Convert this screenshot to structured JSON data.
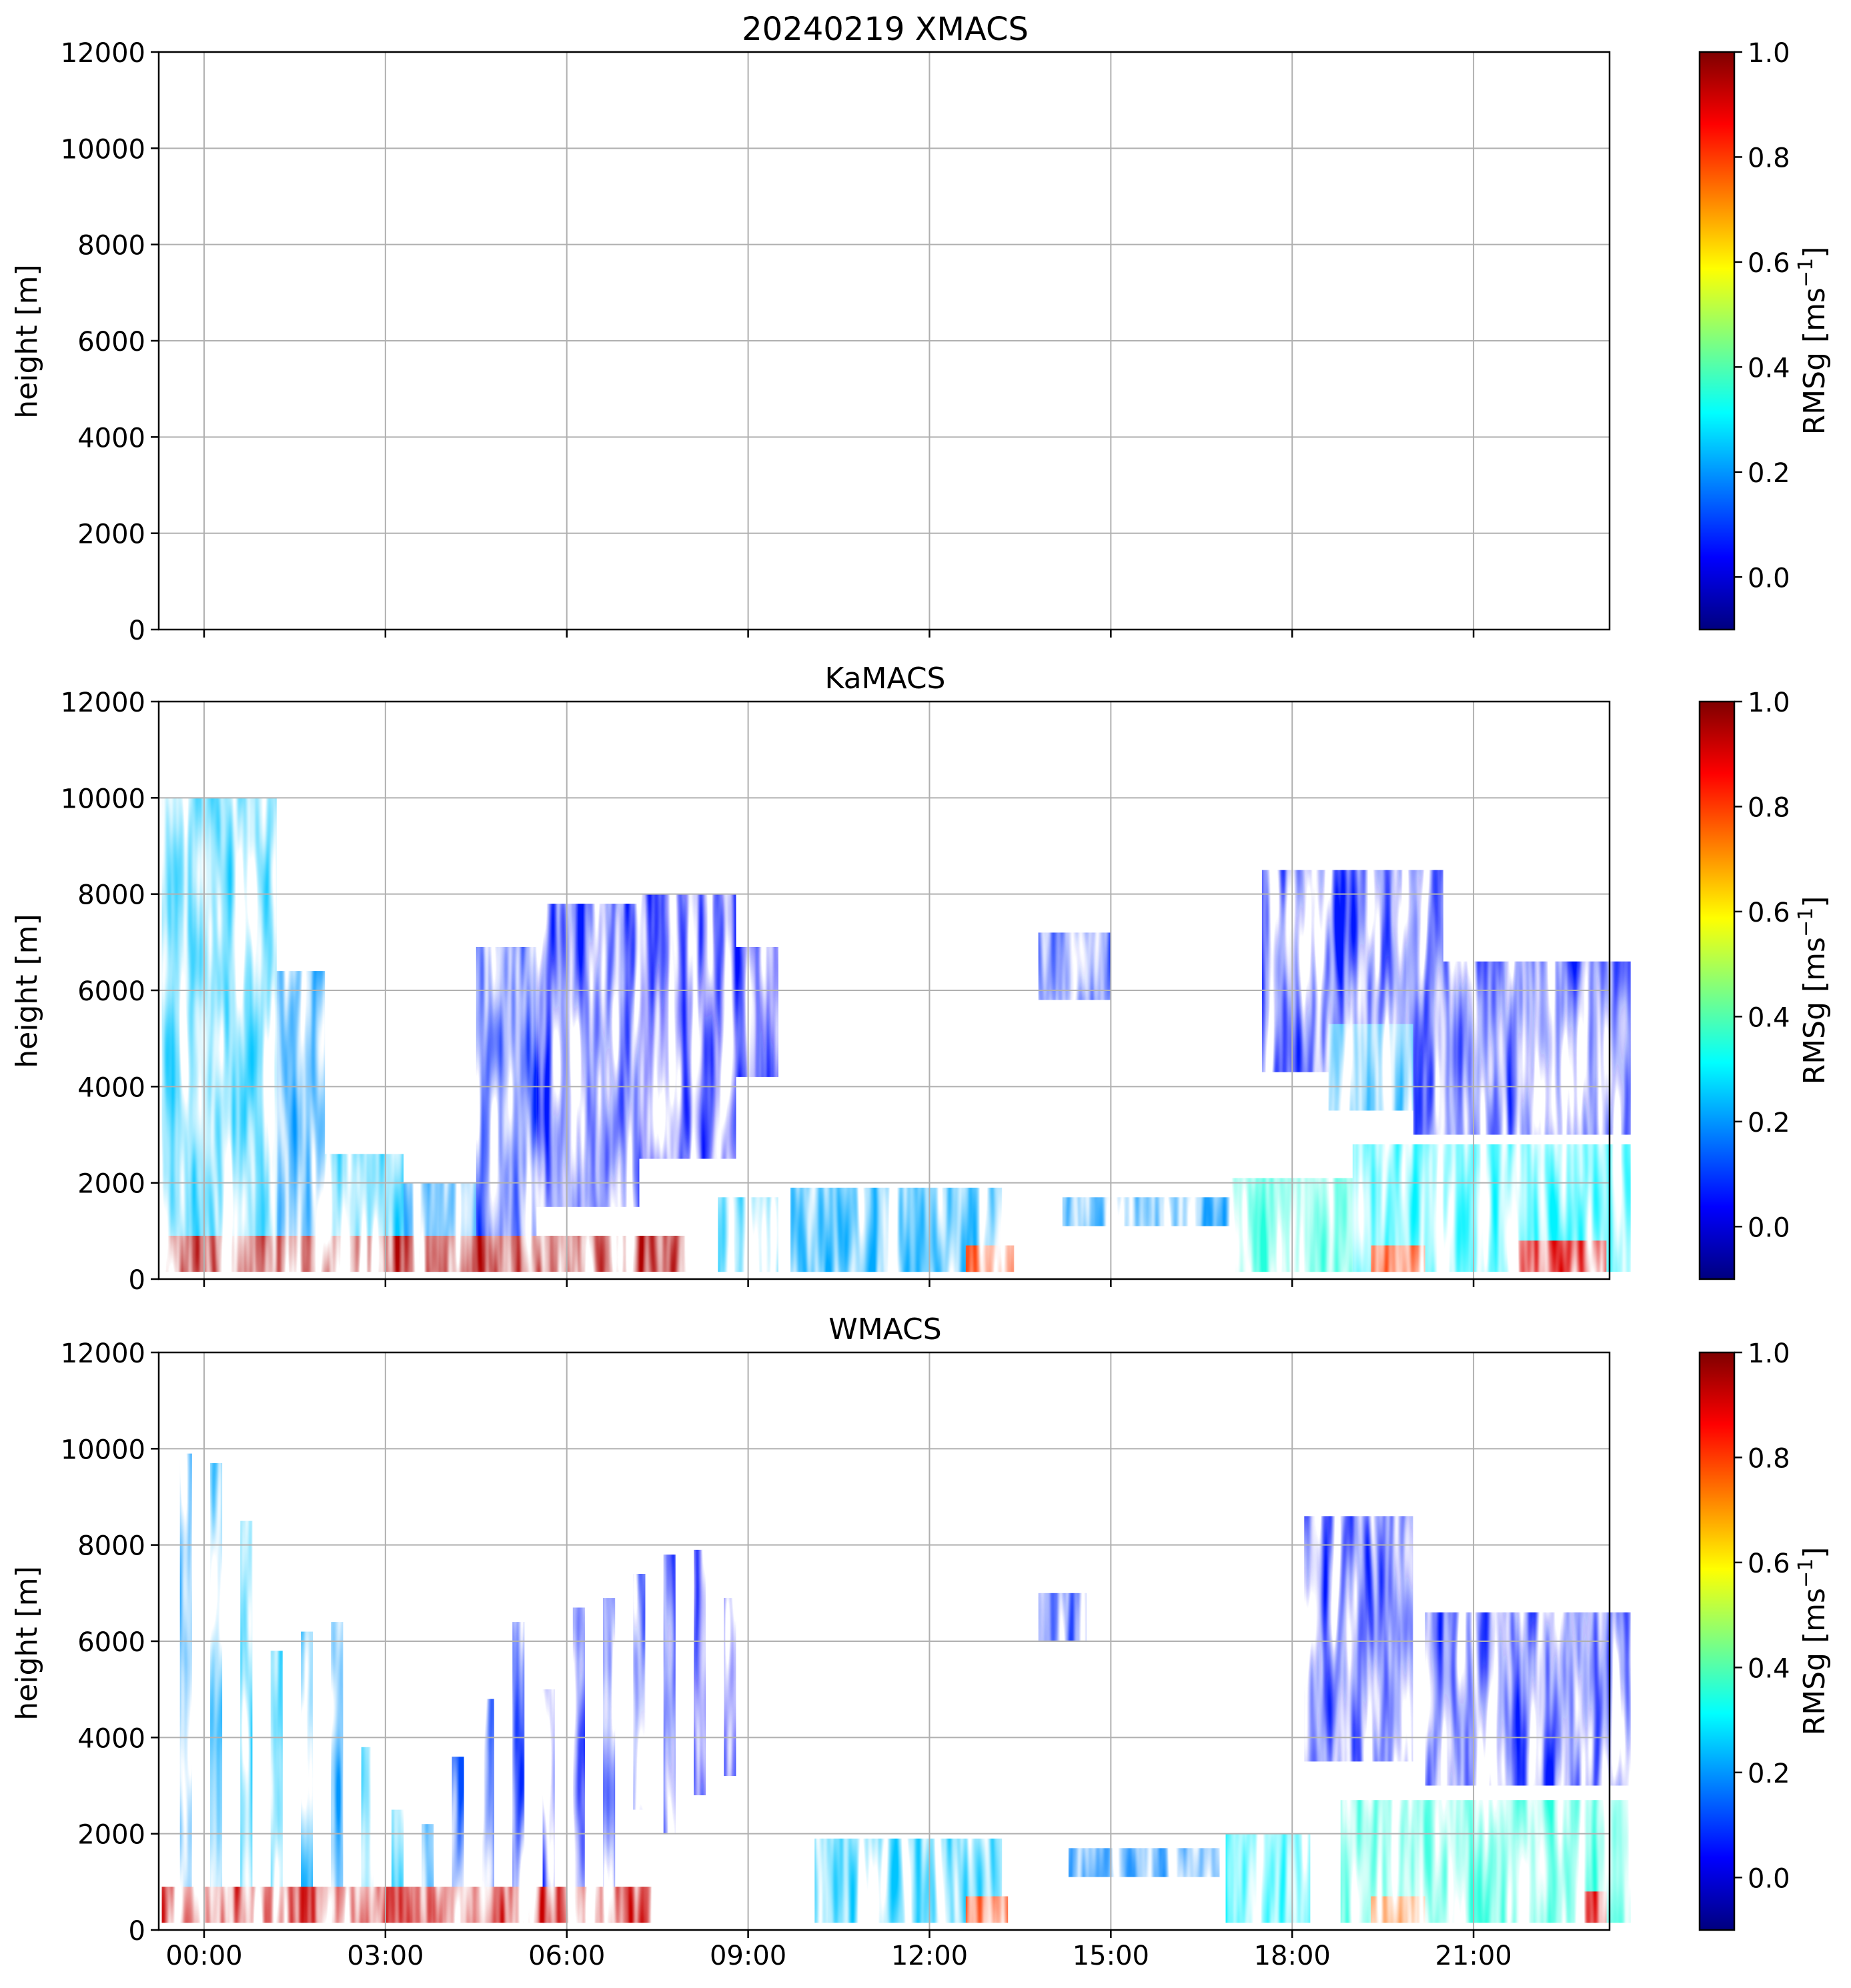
{
  "colorbar": {
    "label": "RMSg [ms",
    "label_sup": "−1",
    "label_end": "]",
    "vmin": -0.1,
    "vmax": 1.0,
    "ticks": [
      "0.0",
      "0.2",
      "0.4",
      "0.6",
      "0.8",
      "1.0"
    ],
    "colormap": "jet",
    "stops": [
      "#00007f",
      "#0000ff",
      "#007fff",
      "#00ffff",
      "#7fff7f",
      "#ffff00",
      "#ff7f00",
      "#ff0000",
      "#7f0000"
    ]
  },
  "time_axis": {
    "ticks": [
      "00:00",
      "03:00",
      "06:00",
      "09:00",
      "12:00",
      "15:00",
      "18:00",
      "21:00"
    ]
  },
  "chart_data": [
    {
      "type": "heatmap",
      "title": "20240219 XMACS",
      "xlabel": "",
      "ylabel": "height [m]",
      "ylim": [
        0,
        12000
      ],
      "yticks": [
        "0",
        "2000",
        "4000",
        "6000",
        "8000",
        "10000",
        "12000"
      ],
      "grid": true,
      "regions": []
    },
    {
      "type": "heatmap",
      "title": "KaMACS",
      "xlabel": "",
      "ylabel": "height [m]",
      "ylim": [
        0,
        12000
      ],
      "yticks": [
        "0",
        "2000",
        "4000",
        "6000",
        "8000",
        "10000",
        "12000"
      ],
      "grid": true,
      "regions": [
        {
          "t": [
            -0.7,
            1.2
          ],
          "h": [
            150,
            10000
          ],
          "v": 0.25
        },
        {
          "t": [
            1.2,
            2.0
          ],
          "h": [
            150,
            6400
          ],
          "v": 0.2
        },
        {
          "t": [
            2.0,
            3.3
          ],
          "h": [
            150,
            2600
          ],
          "v": 0.25
        },
        {
          "t": [
            3.3,
            4.5
          ],
          "h": [
            150,
            2000
          ],
          "v": 0.2
        },
        {
          "t": [
            4.5,
            5.5
          ],
          "h": [
            150,
            6900
          ],
          "v": 0.08
        },
        {
          "t": [
            5.5,
            7.2
          ],
          "h": [
            1500,
            7800
          ],
          "v": 0.06
        },
        {
          "t": [
            7.2,
            8.8
          ],
          "h": [
            2500,
            8000
          ],
          "v": 0.05
        },
        {
          "t": [
            8.8,
            9.5
          ],
          "h": [
            4200,
            6900
          ],
          "v": 0.05
        },
        {
          "t": [
            -0.7,
            8.0
          ],
          "h": [
            150,
            900
          ],
          "v": 0.95
        },
        {
          "t": [
            8.5,
            9.5
          ],
          "h": [
            150,
            1700
          ],
          "v": 0.25
        },
        {
          "t": [
            9.7,
            13.2
          ],
          "h": [
            150,
            1900
          ],
          "v": 0.22
        },
        {
          "t": [
            12.6,
            13.4
          ],
          "h": [
            150,
            700
          ],
          "v": 0.8
        },
        {
          "t": [
            13.8,
            15.0
          ],
          "h": [
            5800,
            7200
          ],
          "v": 0.08
        },
        {
          "t": [
            14.2,
            17.0
          ],
          "h": [
            1100,
            1700
          ],
          "v": 0.2
        },
        {
          "t": [
            17.0,
            19.0
          ],
          "h": [
            150,
            2100
          ],
          "v": 0.35
        },
        {
          "t": [
            17.5,
            20.5
          ],
          "h": [
            4300,
            8500
          ],
          "v": 0.06
        },
        {
          "t": [
            18.6,
            20.0
          ],
          "h": [
            3500,
            5300
          ],
          "v": 0.22
        },
        {
          "t": [
            19.0,
            23.6
          ],
          "h": [
            150,
            2800
          ],
          "v": 0.3
        },
        {
          "t": [
            20.0,
            23.6
          ],
          "h": [
            3000,
            6600
          ],
          "v": 0.06
        },
        {
          "t": [
            19.3,
            20.2
          ],
          "h": [
            150,
            700
          ],
          "v": 0.8
        },
        {
          "t": [
            21.7,
            23.2
          ],
          "h": [
            150,
            800
          ],
          "v": 0.9
        }
      ]
    },
    {
      "type": "heatmap",
      "title": "WMACS",
      "xlabel": "",
      "ylabel": "height [m]",
      "ylim": [
        0,
        12000
      ],
      "yticks": [
        "0",
        "2000",
        "4000",
        "6000",
        "8000",
        "10000",
        "12000"
      ],
      "grid": true,
      "regions": [
        {
          "t": [
            -0.4,
            -0.2
          ],
          "h": [
            150,
            9900
          ],
          "v": 0.2
        },
        {
          "t": [
            0.1,
            0.3
          ],
          "h": [
            150,
            9700
          ],
          "v": 0.22
        },
        {
          "t": [
            0.6,
            0.8
          ],
          "h": [
            150,
            8500
          ],
          "v": 0.25
        },
        {
          "t": [
            1.1,
            1.3
          ],
          "h": [
            150,
            5800
          ],
          "v": 0.25
        },
        {
          "t": [
            1.6,
            1.8
          ],
          "h": [
            150,
            6200
          ],
          "v": 0.22
        },
        {
          "t": [
            2.1,
            2.3
          ],
          "h": [
            150,
            6400
          ],
          "v": 0.2
        },
        {
          "t": [
            2.6,
            2.8
          ],
          "h": [
            150,
            3800
          ],
          "v": 0.25
        },
        {
          "t": [
            3.1,
            3.3
          ],
          "h": [
            150,
            2500
          ],
          "v": 0.25
        },
        {
          "t": [
            3.6,
            3.8
          ],
          "h": [
            150,
            2200
          ],
          "v": 0.2
        },
        {
          "t": [
            4.1,
            4.3
          ],
          "h": [
            150,
            3600
          ],
          "v": 0.12
        },
        {
          "t": [
            4.6,
            4.8
          ],
          "h": [
            150,
            4800
          ],
          "v": 0.1
        },
        {
          "t": [
            5.1,
            5.3
          ],
          "h": [
            150,
            6400
          ],
          "v": 0.08
        },
        {
          "t": [
            5.6,
            5.8
          ],
          "h": [
            150,
            5000
          ],
          "v": 0.06
        },
        {
          "t": [
            6.1,
            6.3
          ],
          "h": [
            150,
            6700
          ],
          "v": 0.06
        },
        {
          "t": [
            6.6,
            6.8
          ],
          "h": [
            150,
            6900
          ],
          "v": 0.07
        },
        {
          "t": [
            7.1,
            7.3
          ],
          "h": [
            2500,
            7400
          ],
          "v": 0.07
        },
        {
          "t": [
            7.6,
            7.8
          ],
          "h": [
            2000,
            7800
          ],
          "v": 0.06
        },
        {
          "t": [
            8.1,
            8.3
          ],
          "h": [
            2800,
            7900
          ],
          "v": 0.05
        },
        {
          "t": [
            8.6,
            8.8
          ],
          "h": [
            3200,
            6900
          ],
          "v": 0.05
        },
        {
          "t": [
            -0.7,
            7.4
          ],
          "h": [
            150,
            900
          ],
          "v": 0.92
        },
        {
          "t": [
            10.1,
            13.2
          ],
          "h": [
            150,
            1900
          ],
          "v": 0.25
        },
        {
          "t": [
            12.6,
            13.3
          ],
          "h": [
            150,
            700
          ],
          "v": 0.8
        },
        {
          "t": [
            13.8,
            14.6
          ],
          "h": [
            6000,
            7000
          ],
          "v": 0.08
        },
        {
          "t": [
            14.3,
            16.8
          ],
          "h": [
            1100,
            1700
          ],
          "v": 0.18
        },
        {
          "t": [
            16.9,
            18.3
          ],
          "h": [
            150,
            2000
          ],
          "v": 0.3
        },
        {
          "t": [
            18.2,
            20.0
          ],
          "h": [
            3500,
            8600
          ],
          "v": 0.06
        },
        {
          "t": [
            18.8,
            23.6
          ],
          "h": [
            150,
            2700
          ],
          "v": 0.35
        },
        {
          "t": [
            20.2,
            23.6
          ],
          "h": [
            3000,
            6600
          ],
          "v": 0.06
        },
        {
          "t": [
            19.3,
            20.2
          ],
          "h": [
            150,
            700
          ],
          "v": 0.75
        },
        {
          "t": [
            22.8,
            23.2
          ],
          "h": [
            150,
            800
          ],
          "v": 0.9
        }
      ]
    }
  ]
}
